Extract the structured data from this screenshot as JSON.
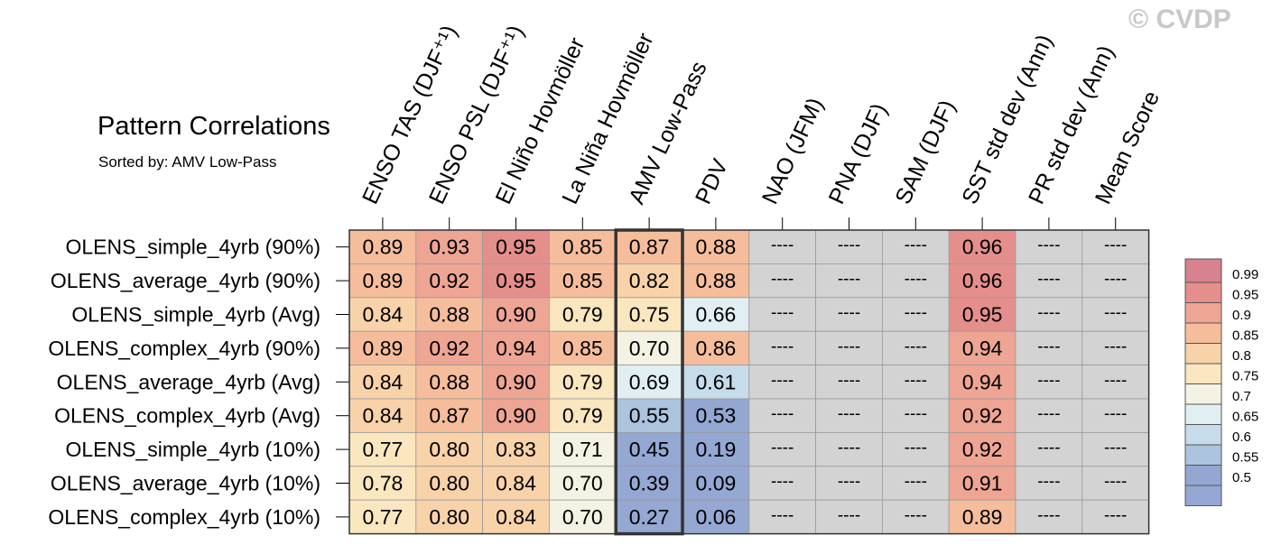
{
  "title": "Pattern Correlations",
  "subtitle": "Sorted by: AMV Low-Pass",
  "watermark": "© CVDP",
  "chart_data": {
    "type": "heatmap",
    "title": "Pattern Correlations",
    "subtitle": "Sorted by: AMV Low-Pass",
    "columns": [
      "ENSO TAS (DJF⁺¹)",
      "ENSO PSL (DJF⁺¹)",
      "El Niño Hovmöller",
      "La Niña Hovmöller",
      "AMV Low-Pass",
      "PDV",
      "NAO (JFM)",
      "PNA (DJF)",
      "SAM (DJF)",
      "SST std dev (Ann)",
      "PR std dev (Ann)",
      "Mean Score"
    ],
    "sorted_column": "AMV Low-Pass",
    "missing_label": "----",
    "missing_color": "#d3d3d3",
    "rows": [
      {
        "name": "OLENS_simple_4yrb (90%)",
        "values": [
          0.89,
          0.93,
          0.95,
          0.85,
          0.87,
          0.88,
          null,
          null,
          null,
          0.96,
          null,
          null
        ]
      },
      {
        "name": "OLENS_average_4yrb (90%)",
        "values": [
          0.89,
          0.92,
          0.95,
          0.85,
          0.82,
          0.88,
          null,
          null,
          null,
          0.96,
          null,
          null
        ]
      },
      {
        "name": "OLENS_simple_4yrb (Avg)",
        "values": [
          0.84,
          0.88,
          0.9,
          0.79,
          0.75,
          0.66,
          null,
          null,
          null,
          0.95,
          null,
          null
        ]
      },
      {
        "name": "OLENS_complex_4yrb (90%)",
        "values": [
          0.89,
          0.92,
          0.94,
          0.85,
          0.7,
          0.86,
          null,
          null,
          null,
          0.94,
          null,
          null
        ]
      },
      {
        "name": "OLENS_average_4yrb (Avg)",
        "values": [
          0.84,
          0.88,
          0.9,
          0.79,
          0.69,
          0.61,
          null,
          null,
          null,
          0.94,
          null,
          null
        ]
      },
      {
        "name": "OLENS_complex_4yrb (Avg)",
        "values": [
          0.84,
          0.87,
          0.9,
          0.79,
          0.55,
          0.53,
          null,
          null,
          null,
          0.92,
          null,
          null
        ]
      },
      {
        "name": "OLENS_simple_4yrb (10%)",
        "values": [
          0.77,
          0.8,
          0.83,
          0.71,
          0.45,
          0.19,
          null,
          null,
          null,
          0.92,
          null,
          null
        ]
      },
      {
        "name": "OLENS_average_4yrb (10%)",
        "values": [
          0.78,
          0.8,
          0.84,
          0.7,
          0.39,
          0.09,
          null,
          null,
          null,
          0.91,
          null,
          null
        ]
      },
      {
        "name": "OLENS_complex_4yrb (10%)",
        "values": [
          0.77,
          0.8,
          0.84,
          0.7,
          0.27,
          0.06,
          null,
          null,
          null,
          0.89,
          null,
          null
        ]
      }
    ],
    "colorbar": {
      "labels": [
        "0.99",
        "0.95",
        "0.9",
        "0.85",
        "0.8",
        "0.75",
        "0.7",
        "0.65",
        "0.6",
        "0.55",
        "0.5"
      ],
      "colors": [
        "#d8818f",
        "#e48f8c",
        "#eea594",
        "#f5bd9c",
        "#f8d2a9",
        "#fae6bf",
        "#f4f2e2",
        "#e1eef2",
        "#c6dcea",
        "#acc4de",
        "#93a7d2",
        "#95a7d3"
      ]
    }
  }
}
